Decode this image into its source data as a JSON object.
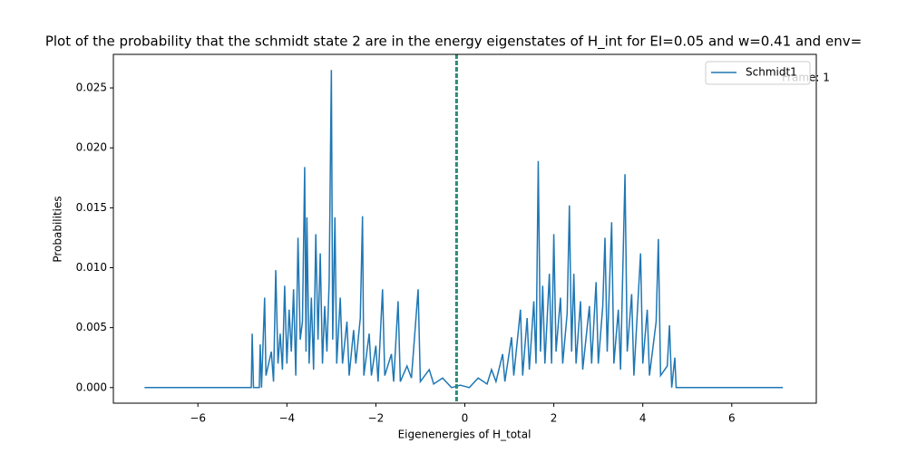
{
  "chart_data": {
    "type": "line",
    "title": "Plot of the probability that the schmidt state 2  are in the energy eigenstates of H_int for EI=0.05 and w=0.41 and env=",
    "xlabel": "Eigenenergies of H_total",
    "ylabel": "Probabilities",
    "annotation": "Frame: 1",
    "legend": "upper right",
    "xlim": [
      -7.9,
      7.9
    ],
    "ylim": [
      -0.0013,
      0.0278
    ],
    "xticks": [
      {
        "value": -6,
        "label": "−6"
      },
      {
        "value": -4,
        "label": "−4"
      },
      {
        "value": -2,
        "label": "−2"
      },
      0,
      2,
      4,
      6
    ],
    "yticks": [
      {
        "value": 0,
        "label": "0.000"
      },
      {
        "value": 0.005,
        "label": "0.005"
      },
      {
        "value": 0.01,
        "label": "0.010"
      },
      {
        "value": 0.015,
        "label": "0.015"
      },
      {
        "value": 0.02,
        "label": "0.020"
      },
      {
        "value": 0.025,
        "label": "0.025"
      }
    ],
    "vlines": [
      {
        "x": -0.2,
        "color": "#1f77b4"
      },
      {
        "x": -0.2,
        "color": "#2ca02c"
      }
    ],
    "series": [
      {
        "name": "Schmidt1",
        "color": "#1f77b4",
        "x": [
          -7.2,
          -4.8,
          -4.78,
          -4.75,
          -4.62,
          -4.6,
          -4.57,
          -4.5,
          -4.47,
          -4.35,
          -4.3,
          -4.25,
          -4.2,
          -4.15,
          -4.1,
          -4.05,
          -4.0,
          -3.95,
          -3.9,
          -3.85,
          -3.8,
          -3.75,
          -3.7,
          -3.65,
          -3.6,
          -3.57,
          -3.55,
          -3.5,
          -3.45,
          -3.4,
          -3.35,
          -3.3,
          -3.25,
          -3.2,
          -3.15,
          -3.1,
          -3.05,
          -3.0,
          -2.97,
          -2.92,
          -2.88,
          -2.8,
          -2.75,
          -2.65,
          -2.6,
          -2.5,
          -2.45,
          -2.35,
          -2.3,
          -2.27,
          -2.15,
          -2.1,
          -2.0,
          -1.95,
          -1.85,
          -1.8,
          -1.65,
          -1.6,
          -1.5,
          -1.45,
          -1.3,
          -1.2,
          -1.05,
          -1.0,
          -0.8,
          -0.7,
          -0.5,
          -0.3,
          -0.1,
          0.1,
          0.3,
          0.5,
          0.6,
          0.7,
          0.85,
          0.9,
          1.05,
          1.1,
          1.25,
          1.3,
          1.4,
          1.45,
          1.55,
          1.6,
          1.65,
          1.7,
          1.75,
          1.8,
          1.9,
          1.95,
          2.0,
          2.05,
          2.15,
          2.2,
          2.3,
          2.35,
          2.4,
          2.45,
          2.5,
          2.6,
          2.65,
          2.8,
          2.85,
          2.95,
          3.0,
          3.1,
          3.15,
          3.2,
          3.3,
          3.35,
          3.45,
          3.5,
          3.6,
          3.65,
          3.75,
          3.8,
          3.95,
          4.0,
          4.1,
          4.15,
          4.3,
          4.35,
          4.4,
          4.55,
          4.6,
          4.65,
          4.72,
          4.75,
          7.15
        ],
        "values": [
          0,
          0,
          0.0045,
          0,
          0,
          0.0036,
          0,
          0.0075,
          0.001,
          0.003,
          0.0005,
          0.0098,
          0.002,
          0.0045,
          0.0015,
          0.0085,
          0.002,
          0.0065,
          0.003,
          0.0082,
          0.001,
          0.0125,
          0.004,
          0.0055,
          0.0184,
          0.003,
          0.0142,
          0.002,
          0.0075,
          0.0015,
          0.0128,
          0.004,
          0.0112,
          0.002,
          0.0068,
          0.003,
          0.0088,
          0.0265,
          0.004,
          0.0142,
          0.002,
          0.0075,
          0.002,
          0.0055,
          0.001,
          0.0048,
          0.002,
          0.0058,
          0.0143,
          0.001,
          0.0045,
          0.001,
          0.0035,
          0.0005,
          0.0082,
          0.001,
          0.0028,
          0.0005,
          0.0072,
          0.0005,
          0.0018,
          0.0008,
          0.0082,
          0.0005,
          0.0015,
          0.0003,
          0.0008,
          0,
          0.0002,
          0,
          0.0008,
          0.0003,
          0.0015,
          0.0005,
          0.0028,
          0.0005,
          0.0042,
          0.001,
          0.0065,
          0.001,
          0.0058,
          0.0015,
          0.0072,
          0.002,
          0.0189,
          0.003,
          0.0085,
          0.002,
          0.0095,
          0.002,
          0.0128,
          0.003,
          0.0075,
          0.002,
          0.0062,
          0.0152,
          0.003,
          0.0095,
          0.002,
          0.0072,
          0.0015,
          0.0068,
          0.002,
          0.0088,
          0.002,
          0.0068,
          0.0125,
          0.003,
          0.0138,
          0.002,
          0.0065,
          0.0015,
          0.0178,
          0.003,
          0.0078,
          0.001,
          0.0112,
          0.002,
          0.0065,
          0.001,
          0.0055,
          0.0124,
          0.001,
          0.0018,
          0.0052,
          0,
          0.0025,
          0,
          0
        ]
      }
    ]
  }
}
